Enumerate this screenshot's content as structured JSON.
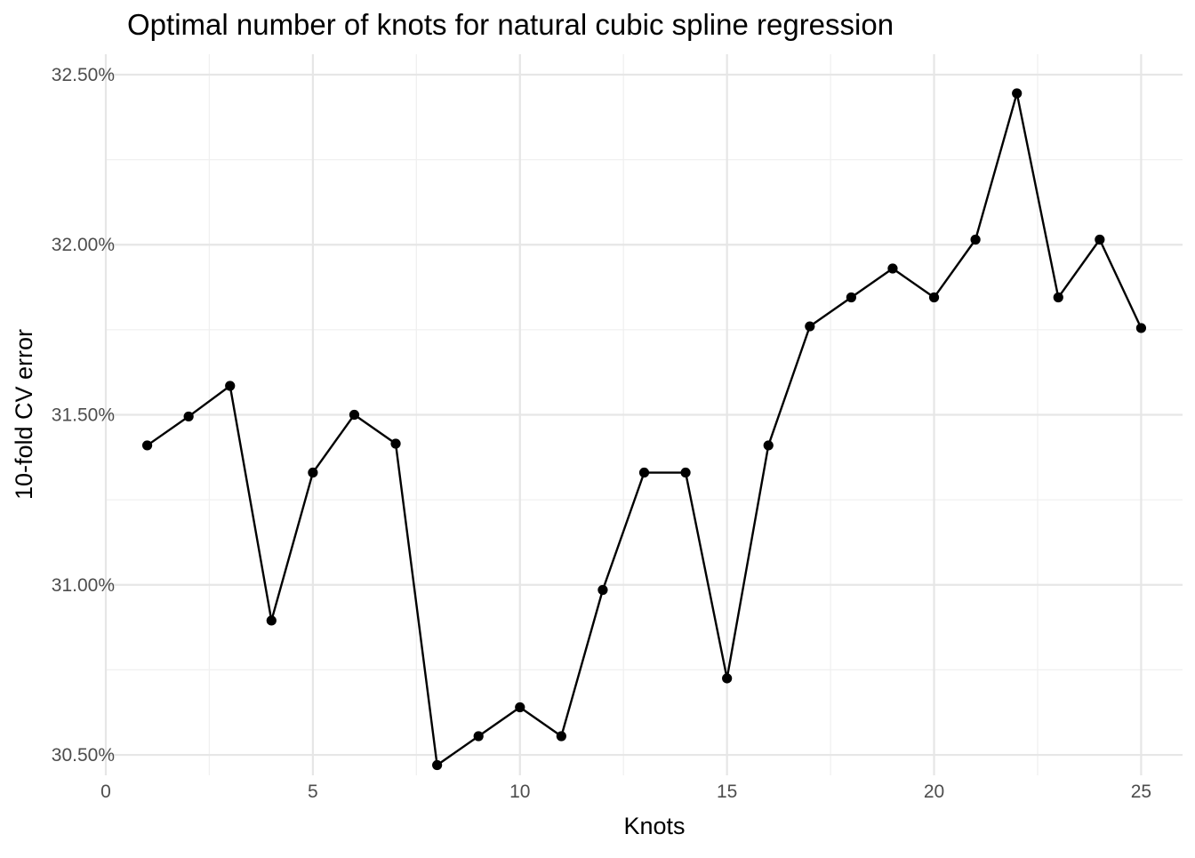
{
  "chart_data": {
    "type": "line",
    "title": "Optimal number of knots for natural cubic spline regression",
    "xlabel": "Knots",
    "ylabel": "10-fold CV error",
    "xlim": [
      0,
      26
    ],
    "ylim": [
      30.44,
      32.56
    ],
    "x_ticks": [
      0,
      5,
      10,
      15,
      20,
      25
    ],
    "x_tick_labels": [
      "0",
      "5",
      "10",
      "15",
      "20",
      "25"
    ],
    "y_ticks": [
      30.5,
      31.0,
      31.5,
      32.0,
      32.5
    ],
    "y_tick_labels": [
      "30.50%",
      "31.00%",
      "31.50%",
      "32.00%",
      "32.50%"
    ],
    "grid": true,
    "legend": "none",
    "line_color": "#000000",
    "series": [
      {
        "x": [
          1,
          2,
          3,
          4,
          5,
          6,
          7,
          8,
          9,
          10,
          11,
          12,
          13,
          14,
          15,
          16,
          17,
          18,
          19,
          20,
          21,
          22,
          23,
          24,
          25
        ],
        "values": [
          31.41,
          31.495,
          31.585,
          30.895,
          31.33,
          31.5,
          31.415,
          30.47,
          30.555,
          30.64,
          30.555,
          30.985,
          31.33,
          31.33,
          30.725,
          31.41,
          31.76,
          31.845,
          31.93,
          31.845,
          32.015,
          32.445,
          31.845,
          32.015,
          31.755
        ]
      }
    ]
  }
}
